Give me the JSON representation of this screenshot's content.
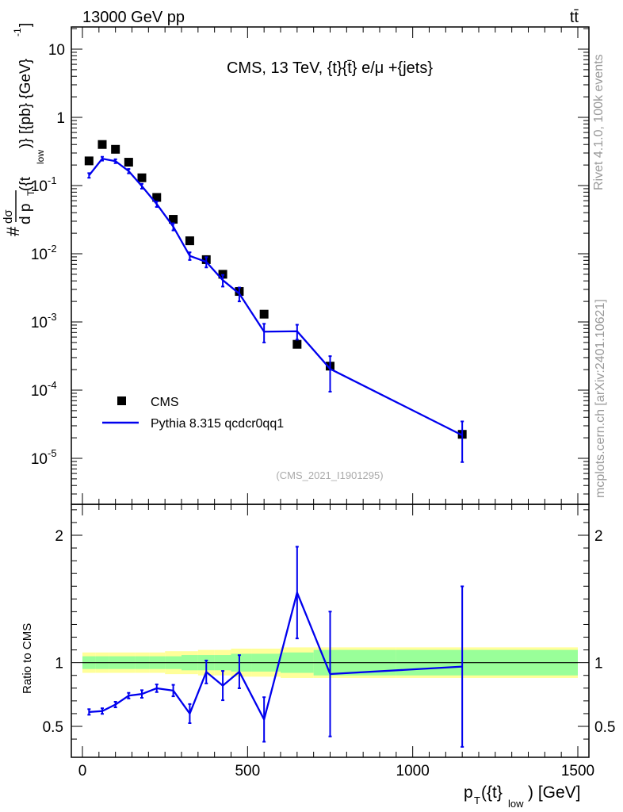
{
  "header": {
    "left_label": "13000 GeV pp",
    "right_label": "tt̄"
  },
  "side": {
    "rivet_label": "Rivet 4.1.0,  100k events",
    "mcplots_label": "mcplots.cern.ch [arXiv:2401.10621]"
  },
  "chart_data": {
    "type": "scatter",
    "title": "CMS, 13 TeV, {t}{t̄} e/μ +{jets}",
    "analysis_id": "(CMS_2021_I1901295)",
    "xlabel": "p_T({t}_low) [GeV]",
    "xlabel_parts": {
      "p": "p",
      "T": "T",
      "mid": "({t}",
      "low": "low",
      "end": ") [GeV]"
    },
    "ylabel_parts": {
      "hash": "#",
      "num": "dσ",
      "den_d": "d p",
      "den_T": "T",
      "den_mid": "({t",
      "den_low": "low",
      "tail": ")} [{pb} {GeV}",
      "exp": "-1",
      "close": "]"
    },
    "xlim": [
      -30,
      1520
    ],
    "x_ticks": [
      0,
      500,
      1000,
      1500
    ],
    "x_tick_labels": [
      "0",
      "500",
      "1000",
      "1500"
    ],
    "main": {
      "yscale": "log",
      "ylim": [
        3e-06,
        20
      ],
      "y_ticks": [
        1e-05,
        0.0001,
        0.001,
        0.01,
        0.1,
        1,
        10
      ],
      "y_tick_labels": [
        {
          "base": "10",
          "exp": "-5"
        },
        {
          "base": "10",
          "exp": "-4"
        },
        {
          "base": "10",
          "exp": "-3"
        },
        {
          "base": "10",
          "exp": "-2"
        },
        {
          "base": "10",
          "exp": "-1"
        },
        {
          "base": "1",
          "exp": ""
        },
        {
          "base": "10",
          "exp": ""
        }
      ]
    },
    "ratio": {
      "ylabel": "Ratio to CMS",
      "ylim": [
        0.35,
        2.3
      ],
      "y_ticks": [
        0.5,
        1,
        2
      ],
      "y_tick_labels": [
        "0.5",
        "1",
        "2"
      ]
    },
    "series": [
      {
        "name": "CMS",
        "style": "markers",
        "color": "#000000",
        "x": [
          20,
          60,
          100,
          140,
          180,
          225,
          275,
          325,
          375,
          425,
          475,
          550,
          650,
          750,
          1150
        ],
        "y": [
          0.23,
          0.4,
          0.34,
          0.22,
          0.13,
          0.067,
          0.032,
          0.0155,
          0.0082,
          0.005,
          0.0028,
          0.0013,
          0.00047,
          0.000225,
          2.25e-05
        ],
        "stat_band": [
          0.05,
          0.05,
          0.05,
          0.05,
          0.05,
          0.05,
          0.05,
          0.06,
          0.06,
          0.06,
          0.07,
          0.07,
          0.08,
          0.1,
          0.1
        ],
        "total_band": [
          0.08,
          0.08,
          0.08,
          0.08,
          0.08,
          0.08,
          0.09,
          0.09,
          0.1,
          0.1,
          0.11,
          0.11,
          0.12,
          0.12,
          0.12
        ]
      },
      {
        "name": "Pythia 8.315 qcdcr0qq1",
        "style": "line",
        "color": "#0000ee",
        "x": [
          20,
          60,
          100,
          140,
          180,
          225,
          275,
          325,
          375,
          425,
          475,
          550,
          650,
          750,
          1150
        ],
        "y": [
          0.141,
          0.248,
          0.228,
          0.163,
          0.098,
          0.0535,
          0.025,
          0.0093,
          0.0076,
          0.0041,
          0.0026,
          0.00072,
          0.00073,
          0.000205,
          2.18e-05
        ],
        "yerr": [
          0.011,
          0.016,
          0.015,
          0.012,
          0.008,
          0.005,
          0.003,
          0.0012,
          0.0013,
          0.0008,
          0.0006,
          0.00022,
          0.00018,
          0.00011,
          1.3e-05
        ],
        "ratio": [
          0.613,
          0.62,
          0.671,
          0.741,
          0.754,
          0.799,
          0.781,
          0.6,
          0.927,
          0.82,
          0.929,
          0.554,
          1.55,
          0.911,
          0.969
        ],
        "ratio_err": [
          0.022,
          0.022,
          0.022,
          0.022,
          0.03,
          0.03,
          0.045,
          0.075,
          0.09,
          0.115,
          0.13,
          0.175,
          0.36,
          0.49,
          0.63
        ]
      }
    ],
    "legend": {
      "position": "bottom-left",
      "entries": [
        "CMS",
        "Pythia 8.315 qcdcr0qq1"
      ]
    }
  }
}
